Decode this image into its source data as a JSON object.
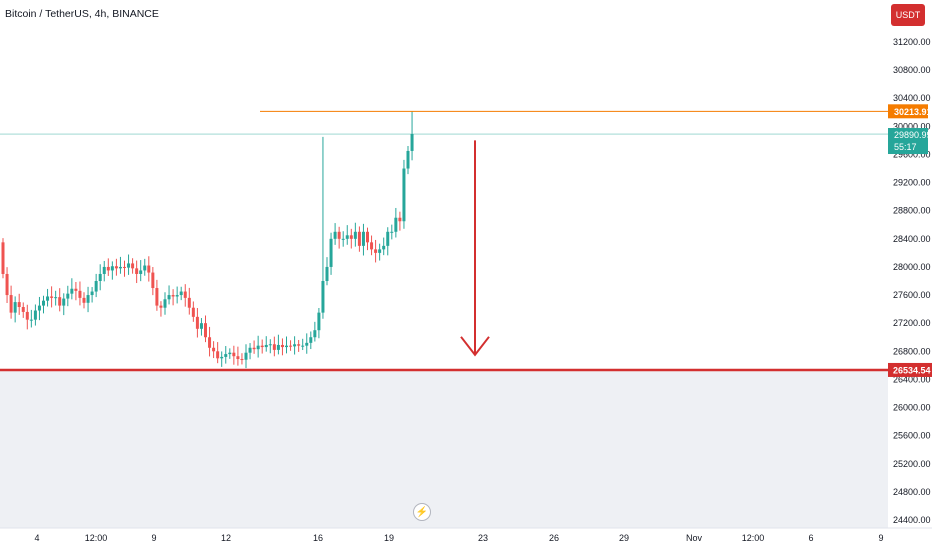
{
  "header": {
    "title": "Bitcoin / TetherUS, 4h, BINANCE",
    "currency_button": "USDT"
  },
  "logo_icon": "tradingview-lightning-icon",
  "chart_data": {
    "type": "candlestick",
    "title": "Bitcoin / TetherUS, 4h, BINANCE",
    "ylim": [
      24400,
      31600
    ],
    "y_ticks": [
      24400,
      24800,
      25200,
      25600,
      26000,
      26400,
      26800,
      27200,
      27600,
      28000,
      28400,
      28800,
      29200,
      29600,
      30000,
      30400,
      30800,
      31200
    ],
    "y_tick_labels": [
      "24400.00",
      "24800.00",
      "25200.00",
      "25600.00",
      "26000.00",
      "26400.00",
      "26800.00",
      "27200.00",
      "27600.00",
      "28000.00",
      "28400.00",
      "28800.00",
      "29200.00",
      "29600.00",
      "30000.00",
      "30400.00",
      "30800.00",
      "31200.00"
    ],
    "x_tick_labels": [
      "4",
      "12:00",
      "9",
      "12",
      "16",
      "19",
      "23",
      "26",
      "29",
      "Nov",
      "12:00",
      "6",
      "9"
    ],
    "closes": [
      27900,
      27600,
      27350,
      27500,
      27430,
      27360,
      27250,
      27250,
      27380,
      27450,
      27520,
      27580,
      27560,
      27570,
      27450,
      27550,
      27620,
      27690,
      27660,
      27560,
      27490,
      27600,
      27650,
      27800,
      27900,
      28000,
      27950,
      28010,
      27980,
      28000,
      27990,
      28050,
      27980,
      27900,
      27950,
      28020,
      27920,
      27700,
      27450,
      27420,
      27540,
      27600,
      27580,
      27600,
      27650,
      27560,
      27420,
      27290,
      27120,
      27200,
      27000,
      26850,
      26800,
      26700,
      26720,
      26760,
      26780,
      26730,
      26690,
      26680,
      26780,
      26850,
      26830,
      26880,
      26860,
      26890,
      26900,
      26820,
      26890,
      26860,
      26880,
      26870,
      26900,
      26880,
      26880,
      26920,
      27000,
      27100,
      27350,
      27800,
      28000,
      28400,
      28500,
      28400,
      28400,
      28450,
      28400,
      28500,
      28300,
      28500,
      28350,
      28250,
      28200,
      28250,
      28300,
      28500,
      28500,
      28700,
      28650,
      29400,
      29650,
      29890.99
    ],
    "horizontal_lines": [
      {
        "price": 30213.91,
        "label": "30213.91",
        "color": "#f57c00"
      },
      {
        "price": 26534.54,
        "label": "26534.54",
        "color": "#d32f2f"
      }
    ],
    "current_price": {
      "price": 29890.99,
      "label": "29890.99",
      "countdown": "55:17",
      "color": "#26a69a"
    },
    "annotation": {
      "type": "arrow-down",
      "from_price": 29800,
      "to_price": 26750,
      "color": "#d32f2f"
    },
    "colors": {
      "up": "#26a69a",
      "down": "#ef5350"
    },
    "shaded_region_below": 26534.54
  }
}
